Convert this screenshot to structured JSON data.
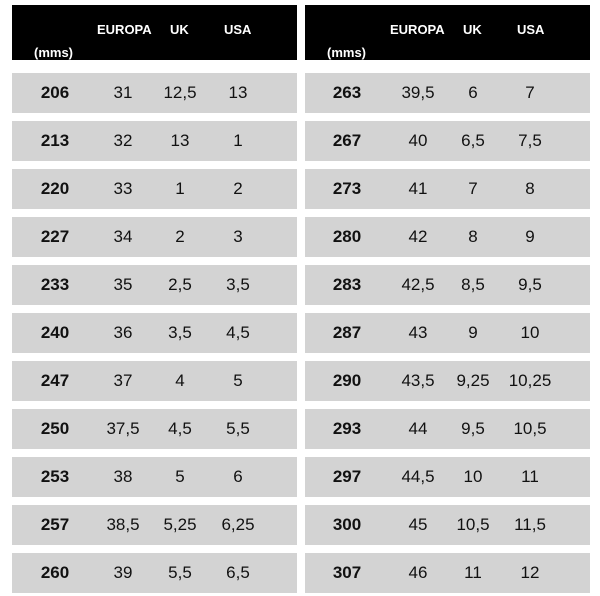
{
  "headers": {
    "mm": "(mms)",
    "europa": "EUROPA",
    "uk": "UK",
    "usa": "USA"
  },
  "colors": {
    "header_bg": "#000000",
    "row_bg": "#d3d3d3"
  },
  "left_rows": [
    [
      "206",
      "31",
      "12,5",
      "13"
    ],
    [
      "213",
      "32",
      "13",
      "1"
    ],
    [
      "220",
      "33",
      "1",
      "2"
    ],
    [
      "227",
      "34",
      "2",
      "3"
    ],
    [
      "233",
      "35",
      "2,5",
      "3,5"
    ],
    [
      "240",
      "36",
      "3,5",
      "4,5"
    ],
    [
      "247",
      "37",
      "4",
      "5"
    ],
    [
      "250",
      "37,5",
      "4,5",
      "5,5"
    ],
    [
      "253",
      "38",
      "5",
      "6"
    ],
    [
      "257",
      "38,5",
      "5,25",
      "6,25"
    ],
    [
      "260",
      "39",
      "5,5",
      "6,5"
    ]
  ],
  "right_rows": [
    [
      "263",
      "39,5",
      "6",
      "7"
    ],
    [
      "267",
      "40",
      "6,5",
      "7,5"
    ],
    [
      "273",
      "41",
      "7",
      "8"
    ],
    [
      "280",
      "42",
      "8",
      "9"
    ],
    [
      "283",
      "42,5",
      "8,5",
      "9,5"
    ],
    [
      "287",
      "43",
      "9",
      "10"
    ],
    [
      "290",
      "43,5",
      "9,25",
      "10,25"
    ],
    [
      "293",
      "44",
      "9,5",
      "10,5"
    ],
    [
      "297",
      "44,5",
      "10",
      "11"
    ],
    [
      "300",
      "45",
      "10,5",
      "11,5"
    ],
    [
      "307",
      "46",
      "11",
      "12"
    ]
  ]
}
